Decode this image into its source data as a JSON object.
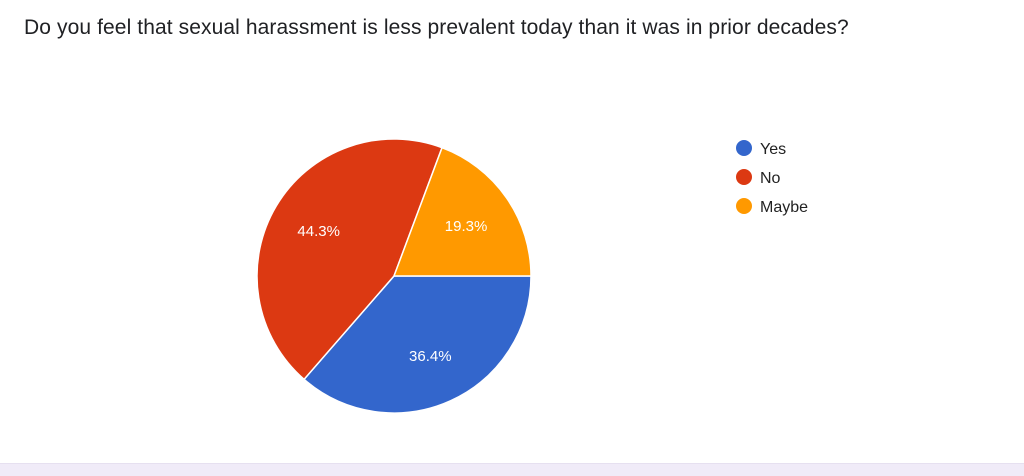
{
  "question": {
    "title": "Do you feel that sexual harassment is less prevalent today than it was in prior decades?"
  },
  "chart_data": {
    "type": "pie",
    "title": "Do you feel that sexual harassment is less prevalent today than it was in prior decades?",
    "categories": [
      "Yes",
      "No",
      "Maybe"
    ],
    "values": [
      36.4,
      44.3,
      19.3
    ],
    "labels": [
      "36.4%",
      "44.3%",
      "19.3%"
    ],
    "colors": [
      "#3366cc",
      "#dc3912",
      "#ff9900"
    ],
    "legend_position": "right",
    "start_angle": "3 o'clock, clockwise"
  }
}
